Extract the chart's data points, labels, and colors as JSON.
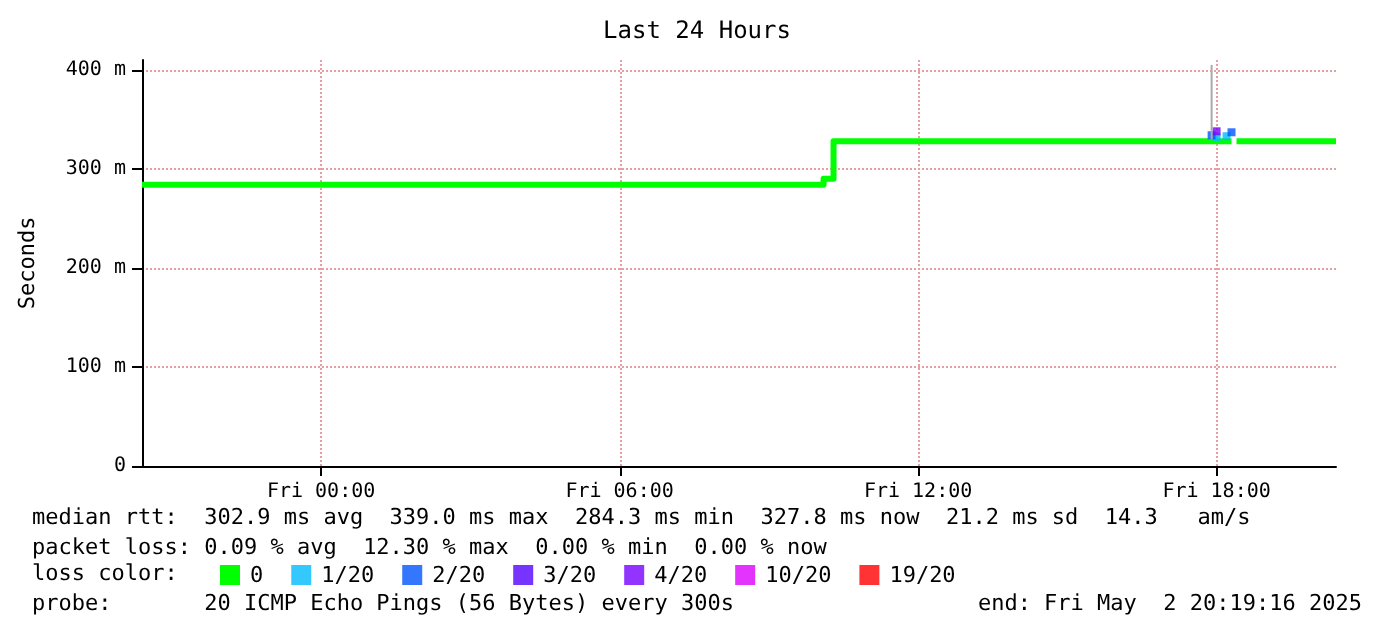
{
  "chart_data": {
    "type": "step",
    "title": "Last 24 Hours",
    "ylabel": "Seconds",
    "legend_title": "loss color:",
    "xlim": [
      "2025-05-01T20:24",
      "2025-05-02T20:24"
    ],
    "xticks": [
      {
        "value": "2025-05-02T00:00",
        "label": "Fri 00:00"
      },
      {
        "value": "2025-05-02T06:00",
        "label": "Fri 06:00"
      },
      {
        "value": "2025-05-02T12:00",
        "label": "Fri 12:00"
      },
      {
        "value": "2025-05-02T18:00",
        "label": "Fri 18:00"
      }
    ],
    "ylim": [
      0,
      410
    ],
    "yticks": [
      0,
      {
        "value": 100,
        "label": "100 m"
      },
      {
        "value": 200,
        "label": "200 m"
      },
      {
        "value": 300,
        "label": "300 m"
      },
      {
        "value": 400,
        "label": "400 m"
      }
    ],
    "grid": true,
    "legend": "bottom",
    "series": [
      {
        "name": "0",
        "color": "#00ff00",
        "x": [
          "2025-05-01T20:24",
          "2025-05-02T10:00",
          "2025-05-02T10:06",
          "2025-05-02T10:18",
          "2025-05-02T17:54",
          "2025-05-02T18:18",
          "2025-05-02T18:24",
          "2025-05-02T20:24"
        ],
        "values": [
          284,
          284,
          290,
          328,
          328,
          null,
          328,
          328
        ]
      },
      {
        "name": "1/20",
        "color": "#00bbff",
        "type": "scatter",
        "x": [
          "2025-05-02T18:00",
          "2025-05-02T18:12"
        ],
        "values": [
          332,
          333
        ]
      },
      {
        "name": "2/20",
        "color": "#0055ff",
        "type": "scatter",
        "x": [
          "2025-05-02T17:54",
          "2025-05-02T18:18"
        ],
        "values": [
          334,
          337
        ]
      },
      {
        "name": "3/20",
        "color": "#5500ff",
        "type": "scatter"
      },
      {
        "name": "4/20",
        "color": "#7700ff",
        "type": "scatter",
        "x": [
          "2025-05-02T18:00"
        ],
        "values": [
          338
        ]
      },
      {
        "name": "10/20",
        "color": "#dd00ff",
        "type": "scatter"
      },
      {
        "name": "19/20",
        "color": "#ff0000",
        "type": "scatter"
      },
      {
        "color": "#aaaaaa",
        "type": "line",
        "x": [
          "2025-05-02T17:54",
          "2025-05-02T17:54"
        ],
        "values": [
          330,
          405
        ]
      }
    ],
    "annotations": [
      "median rtt:  302.9 ms avg  339.0 ms max  284.3 ms min  327.8 ms now  21.2 ms sd  14.3   am/s",
      "packet loss: 0.09 % avg  12.30 % max  0.00 % min  0.00 % now",
      "probe:       20 ICMP Echo Pings (56 Bytes) every 300s",
      "end: Fri May  2 20:19:16 2025"
    ]
  }
}
